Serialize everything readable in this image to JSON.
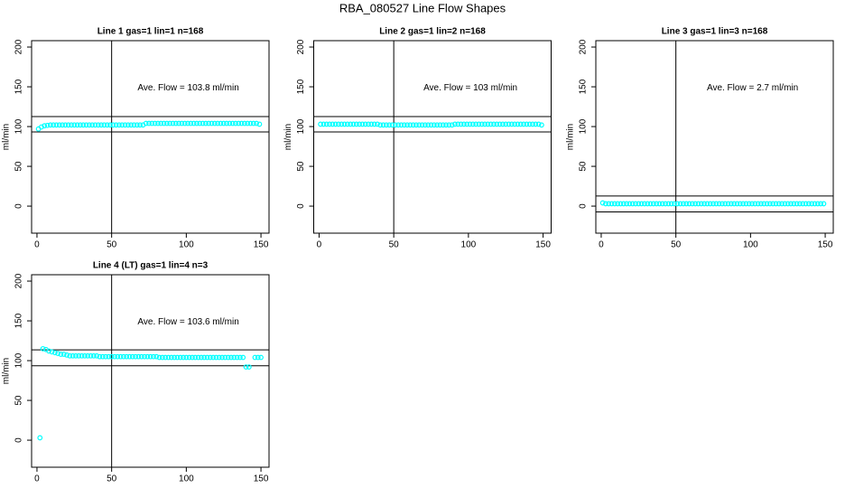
{
  "title": "RBA_080527  Line Flow Shapes",
  "chart_data": [
    {
      "type": "scatter",
      "title": "Line 1 gas=1 lin=1 n=168",
      "ylabel": "ml/min",
      "annotation": "Ave. Flow =  103.8  ml/min",
      "color": "#00ffff",
      "xlim": [
        -3.6,
        155.4
      ],
      "ylim": [
        -34,
        208
      ],
      "xticks": [
        0,
        50,
        100,
        150
      ],
      "yticks": [
        0,
        50,
        100,
        150,
        200
      ],
      "hlines": [
        112.5,
        93.2
      ],
      "vline": 50,
      "x": [
        1,
        3,
        5,
        7,
        9,
        11,
        13,
        15,
        17,
        19,
        21,
        23,
        25,
        27,
        29,
        31,
        33,
        35,
        37,
        39,
        41,
        43,
        45,
        47,
        49,
        51,
        53,
        55,
        57,
        59,
        61,
        63,
        65,
        67,
        69,
        71,
        73,
        75,
        77,
        79,
        81,
        83,
        85,
        87,
        89,
        91,
        93,
        95,
        97,
        99,
        101,
        103,
        105,
        107,
        109,
        111,
        113,
        115,
        117,
        119,
        121,
        123,
        125,
        127,
        129,
        131,
        133,
        135,
        137,
        139,
        141,
        143,
        145,
        147,
        149
      ],
      "values": [
        97,
        99.5,
        101,
        101.5,
        102,
        102,
        102,
        102,
        102,
        102,
        102,
        102,
        102,
        102,
        102,
        102,
        102,
        102,
        102,
        102,
        102,
        102,
        102,
        102,
        102,
        102,
        102,
        102,
        102,
        102,
        102,
        102,
        102,
        102,
        102,
        102,
        104,
        104,
        104,
        104,
        104,
        104,
        104,
        104,
        104,
        104,
        104,
        104,
        104,
        104,
        104,
        104,
        104,
        104,
        104,
        104,
        104,
        104,
        104,
        104,
        104,
        104,
        104,
        104,
        104,
        104,
        104,
        104,
        104,
        104,
        104,
        104,
        104,
        104,
        103
      ]
    },
    {
      "type": "scatter",
      "title": "Line 2 gas=1 lin=2 n=168",
      "ylabel": "ml/min",
      "annotation": "Ave. Flow =  103  ml/min",
      "color": "#00ffff",
      "xlim": [
        -3.6,
        155.4
      ],
      "ylim": [
        -34,
        208
      ],
      "xticks": [
        0,
        50,
        100,
        150
      ],
      "yticks": [
        0,
        50,
        100,
        150,
        200
      ],
      "hlines": [
        112.5,
        93.2
      ],
      "vline": 50,
      "x": [
        1,
        3,
        5,
        7,
        9,
        11,
        13,
        15,
        17,
        19,
        21,
        23,
        25,
        27,
        29,
        31,
        33,
        35,
        37,
        39,
        41,
        43,
        45,
        47,
        49,
        51,
        53,
        55,
        57,
        59,
        61,
        63,
        65,
        67,
        69,
        71,
        73,
        75,
        77,
        79,
        81,
        83,
        85,
        87,
        89,
        91,
        93,
        95,
        97,
        99,
        101,
        103,
        105,
        107,
        109,
        111,
        113,
        115,
        117,
        119,
        121,
        123,
        125,
        127,
        129,
        131,
        133,
        135,
        137,
        139,
        141,
        143,
        145,
        147,
        149
      ],
      "values": [
        103,
        103,
        103,
        103,
        103,
        103,
        103,
        103,
        103,
        103,
        103,
        103,
        103,
        103,
        103,
        103,
        103,
        103,
        103,
        103,
        102,
        102,
        102,
        102,
        102,
        102,
        102,
        102,
        102,
        102,
        102,
        102,
        102,
        102,
        102,
        102,
        102,
        102,
        102,
        102,
        102,
        102,
        102,
        102,
        102,
        103,
        103,
        103,
        103,
        103,
        103,
        103,
        103,
        103,
        103,
        103,
        103,
        103,
        103,
        103,
        103,
        103,
        103,
        103,
        103,
        103,
        103,
        103,
        103,
        103,
        103,
        103,
        103,
        103,
        102
      ]
    },
    {
      "type": "scatter",
      "title": "Line 3 gas=1 lin=3 n=168",
      "ylabel": "ml/min",
      "annotation": "Ave. Flow =  2.7  ml/min",
      "color": "#00ffff",
      "xlim": [
        -3.6,
        155.4
      ],
      "ylim": [
        -34,
        208
      ],
      "xticks": [
        0,
        50,
        100,
        150
      ],
      "yticks": [
        0,
        50,
        100,
        150,
        200
      ],
      "hlines": [
        12.7,
        -7.3
      ],
      "vline": 50,
      "x": [
        1,
        3,
        5,
        7,
        9,
        11,
        13,
        15,
        17,
        19,
        21,
        23,
        25,
        27,
        29,
        31,
        33,
        35,
        37,
        39,
        41,
        43,
        45,
        47,
        49,
        51,
        53,
        55,
        57,
        59,
        61,
        63,
        65,
        67,
        69,
        71,
        73,
        75,
        77,
        79,
        81,
        83,
        85,
        87,
        89,
        91,
        93,
        95,
        97,
        99,
        101,
        103,
        105,
        107,
        109,
        111,
        113,
        115,
        117,
        119,
        121,
        123,
        125,
        127,
        129,
        131,
        133,
        135,
        137,
        139,
        141,
        143,
        145,
        147,
        149
      ],
      "values": [
        4,
        3,
        3,
        3,
        3,
        3,
        3,
        3,
        3,
        3,
        3,
        3,
        3,
        3,
        3,
        3,
        3,
        3,
        3,
        3,
        3,
        3,
        3,
        3,
        3,
        3,
        3,
        3,
        3,
        3,
        3,
        3,
        3,
        3,
        3,
        3,
        3,
        3,
        3,
        3,
        3,
        3,
        3,
        3,
        3,
        3,
        3,
        3,
        3,
        3,
        3,
        3,
        3,
        3,
        3,
        3,
        3,
        3,
        3,
        3,
        3,
        3,
        3,
        3,
        3,
        3,
        3,
        3,
        3,
        3,
        3,
        3,
        3,
        3,
        3
      ]
    },
    {
      "type": "scatter",
      "title": "Line 4 (LT) gas=1 lin=4 n=3",
      "ylabel": "ml/min",
      "annotation": "Ave. Flow =  103.6  ml/min",
      "color": "#00ffff",
      "xlim": [
        -3.6,
        155.4
      ],
      "ylim": [
        -34,
        208
      ],
      "xticks": [
        0,
        50,
        100,
        150
      ],
      "yticks": [
        0,
        50,
        100,
        150,
        200
      ],
      "hlines": [
        113.6,
        93.6
      ],
      "vline": 50,
      "x": [
        2,
        4,
        6,
        8,
        10,
        12,
        14,
        16,
        18,
        20,
        22,
        24,
        26,
        28,
        30,
        32,
        34,
        36,
        38,
        40,
        42,
        44,
        46,
        48,
        50,
        52,
        54,
        56,
        58,
        60,
        62,
        64,
        66,
        68,
        70,
        72,
        74,
        76,
        78,
        80,
        82,
        84,
        86,
        88,
        90,
        92,
        94,
        96,
        98,
        100,
        102,
        104,
        106,
        108,
        110,
        112,
        114,
        116,
        118,
        120,
        122,
        124,
        126,
        128,
        130,
        132,
        134,
        136,
        138,
        140,
        142,
        146,
        148,
        150
      ],
      "values": [
        3,
        115,
        114,
        112,
        111,
        110,
        109,
        108,
        108,
        107,
        106,
        106,
        106,
        106,
        106,
        106,
        106,
        106,
        106,
        106,
        105,
        105,
        105,
        105,
        105,
        105,
        105,
        105,
        105,
        105,
        105,
        105,
        105,
        105,
        105,
        105,
        105,
        105,
        105,
        105,
        104,
        104,
        104,
        104,
        104,
        104,
        104,
        104,
        104,
        104,
        104,
        104,
        104,
        104,
        104,
        104,
        104,
        104,
        104,
        104,
        104,
        104,
        104,
        104,
        104,
        104,
        104,
        104,
        104,
        92,
        92,
        104,
        104,
        104
      ]
    }
  ]
}
